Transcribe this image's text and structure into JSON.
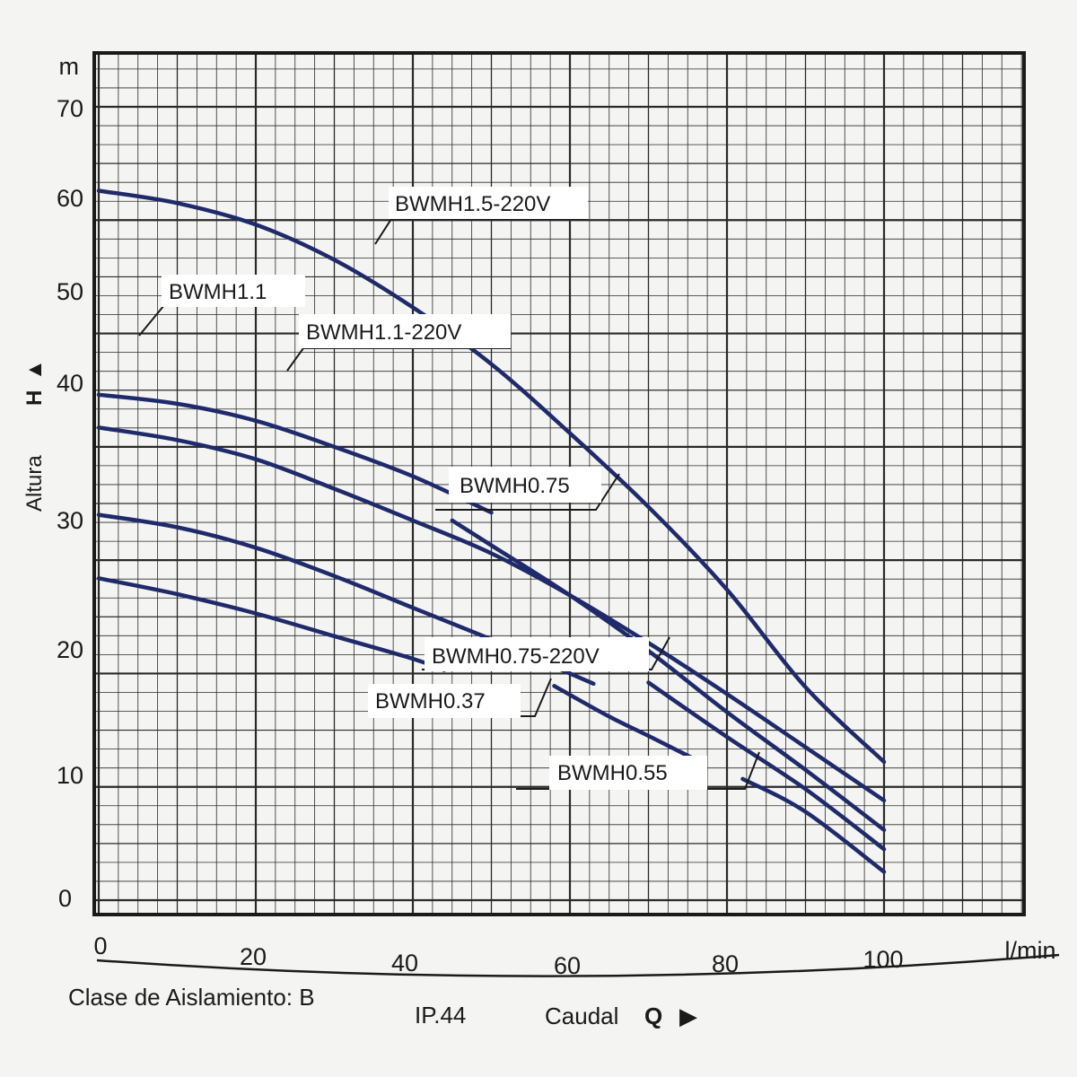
{
  "chart_data": {
    "type": "line",
    "y_unit": "m",
    "x_unit": "l/min",
    "ylabel_text": "Altura",
    "ylabel_symbol": "H",
    "ylabel_arrow": "▲",
    "xlabel_text": "Caudal",
    "xlabel_symbol": "Q",
    "xlabel_arrow": "▶",
    "xlim": [
      0,
      100
    ],
    "ylim": [
      0,
      70
    ],
    "x_ticks": [
      0,
      20,
      40,
      60,
      80,
      100
    ],
    "y_ticks": [
      0,
      10,
      20,
      30,
      40,
      50,
      60,
      70
    ],
    "grid": true,
    "line_color": "#1f2a6b",
    "series": [
      {
        "name": "BWMH1.5-220V",
        "x": [
          0,
          10,
          20,
          30,
          40,
          50,
          60,
          70,
          80,
          90,
          100
        ],
        "y": [
          62.6,
          61.5,
          59.6,
          56.5,
          52.3,
          47.3,
          41.2,
          34.7,
          27.4,
          18.8,
          12.2
        ]
      },
      {
        "name": "BWMH1.1",
        "x": [
          0,
          10,
          20,
          30,
          40,
          50
        ],
        "y": [
          44.6,
          43.8,
          42.3,
          40.0,
          37.4,
          34.2
        ]
      },
      {
        "name": "BWMH0.75",
        "x": [
          0,
          10,
          20,
          30,
          40,
          50,
          60,
          70,
          80,
          90,
          100
        ],
        "y": [
          41.7,
          40.6,
          38.9,
          36.3,
          33.5,
          30.6,
          26.9,
          22.7,
          18.2,
          13.5,
          8.8
        ]
      },
      {
        "name": "BWMH1.1-220V",
        "x": [
          45,
          50,
          60,
          70,
          80,
          90,
          100
        ],
        "y": [
          33.5,
          31.3,
          26.9,
          22.0,
          16.6,
          11.5,
          6.2
        ]
      },
      {
        "name": "BWMH0.75-220V",
        "x": [
          0,
          10,
          20,
          30,
          40,
          50,
          60,
          63
        ],
        "y": [
          34.0,
          32.9,
          31.1,
          28.6,
          25.8,
          23.0,
          20.0,
          19.1
        ]
      },
      {
        "name": "BWMH0.55",
        "x": [
          70,
          80,
          90,
          100
        ],
        "y": [
          19.2,
          14.4,
          9.8,
          4.5
        ]
      },
      {
        "name": "BWMH0.37",
        "x": [
          0,
          10,
          20,
          30,
          40,
          44
        ],
        "y": [
          28.4,
          27.0,
          25.3,
          23.3,
          21.3,
          20.3
        ]
      },
      {
        "name": "",
        "x": [
          58,
          65,
          70,
          76
        ],
        "y": [
          18.9,
          16.2,
          14.5,
          12.4
        ]
      },
      {
        "name": "",
        "x": [
          82,
          90,
          100
        ],
        "y": [
          10.7,
          7.8,
          2.5
        ]
      }
    ]
  },
  "footer": {
    "insulation": "Clase de Aislamiento: B",
    "ip_rating": "IP.44"
  }
}
